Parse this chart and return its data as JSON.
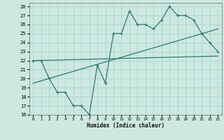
{
  "xlabel": "Humidex (Indice chaleur)",
  "xlim": [
    -0.5,
    23.5
  ],
  "ylim": [
    16,
    28.4
  ],
  "yticks": [
    16,
    17,
    18,
    19,
    20,
    21,
    22,
    23,
    24,
    25,
    26,
    27,
    28
  ],
  "xticks": [
    0,
    1,
    2,
    3,
    4,
    5,
    6,
    7,
    8,
    9,
    10,
    11,
    12,
    13,
    14,
    15,
    16,
    17,
    18,
    19,
    20,
    21,
    22,
    23
  ],
  "bg_color": "#cce8e0",
  "line_color": "#2d7a6e",
  "grid_color": "#b0d8d0",
  "main_line_x": [
    0,
    1,
    2,
    3,
    4,
    5,
    6,
    7,
    8,
    9,
    10,
    11,
    12,
    13,
    14,
    15,
    16,
    17,
    18,
    19,
    20,
    21,
    22,
    23
  ],
  "main_line_y": [
    22,
    22,
    20,
    18.5,
    18.5,
    17,
    17,
    16,
    21.5,
    19.5,
    25,
    25,
    27.5,
    26,
    26,
    25.5,
    26.5,
    28,
    27,
    27,
    26.5,
    25,
    24,
    23
  ],
  "trend1_x": [
    0,
    23
  ],
  "trend1_y": [
    22,
    22.5
  ],
  "trend2_x": [
    0,
    23
  ],
  "trend2_y": [
    19.5,
    25.5
  ]
}
